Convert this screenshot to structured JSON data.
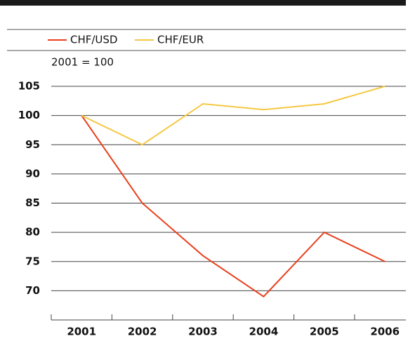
{
  "chart_data": {
    "type": "line",
    "subtitle": "2001 = 100",
    "categories": [
      "2001",
      "2002",
      "2003",
      "2004",
      "2005",
      "2006"
    ],
    "series": [
      {
        "name": "CHF/USD",
        "color": "#e8401c",
        "values": [
          100,
          85,
          76,
          69,
          80,
          75
        ]
      },
      {
        "name": "CHF/EUR",
        "color": "#f5c842",
        "values": [
          100,
          95,
          102,
          101,
          102,
          105
        ]
      }
    ],
    "ylim": [
      65,
      105
    ],
    "yticks": [
      70,
      75,
      80,
      85,
      90,
      95,
      100,
      105
    ],
    "grid": true
  }
}
